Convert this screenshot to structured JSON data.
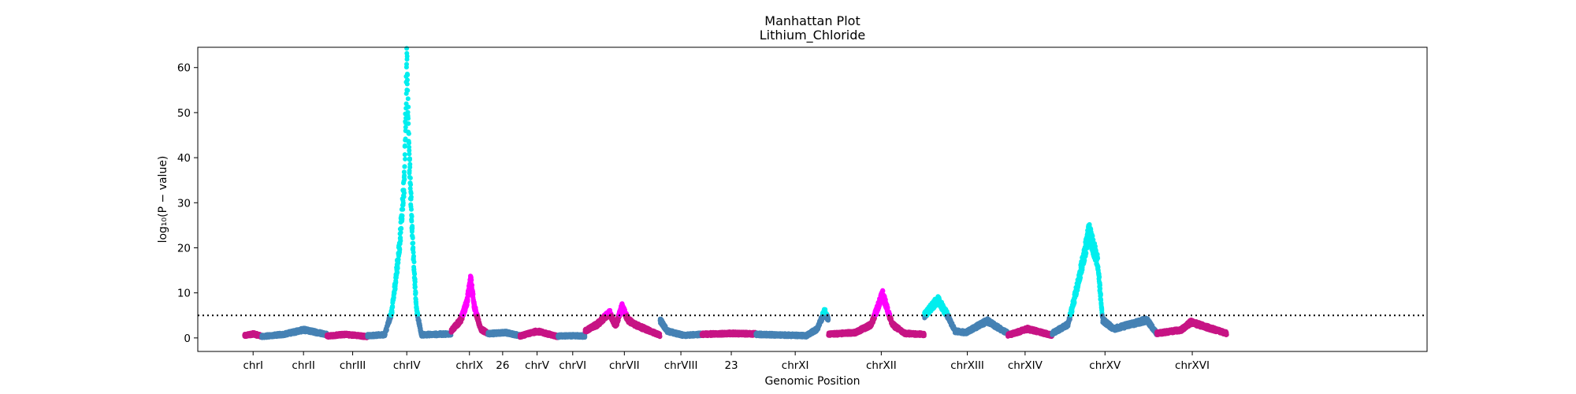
{
  "chart_data": {
    "type": "scatter",
    "title": "Manhattan Plot",
    "subtitle": "Lithium_Chloride",
    "xlabel": "Genomic Position",
    "ylabel": "log₁₀(P − value)",
    "ylim": [
      -3,
      64.5
    ],
    "xlim": [
      0,
      100
    ],
    "yticks": [
      0,
      10,
      20,
      30,
      40,
      50,
      60
    ],
    "threshold": 5.0,
    "grid": false,
    "legend": "none",
    "colors": {
      "chr_a": "#c71585",
      "chr_b": "#4682b4",
      "sig_a": "#ff00ff",
      "sig_b": "#00eeee",
      "threshold": "#000000"
    },
    "xtick_labels": [
      {
        "label": "chrI",
        "x": 4.5
      },
      {
        "label": "chrII",
        "x": 8.6
      },
      {
        "label": "chrIII",
        "x": 12.6
      },
      {
        "label": "chrIV",
        "x": 17.0
      },
      {
        "label": "chrIX",
        "x": 22.1
      },
      {
        "label": "26",
        "x": 24.8
      },
      {
        "label": "chrV",
        "x": 27.6
      },
      {
        "label": "chrVI",
        "x": 30.5
      },
      {
        "label": "chrVII",
        "x": 34.7
      },
      {
        "label": "chrVIII",
        "x": 39.3
      },
      {
        "label": "23",
        "x": 43.4
      },
      {
        "label": "chrXI",
        "x": 48.6
      },
      {
        "label": "chrXII",
        "x": 55.6
      },
      {
        "label": "chrXIII",
        "x": 62.6
      },
      {
        "label": "chrXIV",
        "x": 67.3
      },
      {
        "label": "chrXV",
        "x": 73.8
      },
      {
        "label": "chrXVI",
        "x": 80.9
      }
    ],
    "series": [
      {
        "chrom": "chrI",
        "color": "chr_a",
        "start": 3.8,
        "end": 5.2,
        "profile": [
          [
            3.8,
            0.5
          ],
          [
            4.5,
            0.9
          ],
          [
            5.2,
            0.4
          ]
        ]
      },
      {
        "chrom": "chrII",
        "color": "chr_b",
        "start": 5.2,
        "end": 10.5,
        "profile": [
          [
            5.2,
            0.3
          ],
          [
            7.0,
            0.8
          ],
          [
            8.6,
            1.8
          ],
          [
            10.5,
            0.8
          ]
        ]
      },
      {
        "chrom": "chrIII",
        "color": "chr_a",
        "start": 10.5,
        "end": 13.8,
        "profile": [
          [
            10.5,
            0.4
          ],
          [
            12.0,
            0.8
          ],
          [
            13.8,
            0.3
          ]
        ]
      },
      {
        "chrom": "chrIV",
        "color": "chr_b",
        "start": 13.8,
        "end": 20.6,
        "profile": [
          [
            13.8,
            0.5
          ],
          [
            15.2,
            0.7
          ],
          [
            15.8,
            6
          ],
          [
            16.4,
            20
          ],
          [
            16.8,
            35
          ],
          [
            17.0,
            61
          ],
          [
            17.2,
            40
          ],
          [
            17.5,
            20
          ],
          [
            17.8,
            6
          ],
          [
            18.2,
            0.7
          ],
          [
            20.6,
            0.9
          ]
        ]
      },
      {
        "chrom": "chrIX",
        "color": "chr_a",
        "start": 20.6,
        "end": 23.6,
        "profile": [
          [
            20.6,
            1.5
          ],
          [
            21.4,
            4
          ],
          [
            21.9,
            8
          ],
          [
            22.2,
            13
          ],
          [
            22.5,
            7
          ],
          [
            23.0,
            2
          ],
          [
            23.6,
            1.0
          ]
        ]
      },
      {
        "chrom": "26",
        "color": "chr_b",
        "start": 23.6,
        "end": 26.2,
        "profile": [
          [
            23.6,
            0.9
          ],
          [
            25.0,
            1.2
          ],
          [
            26.2,
            0.5
          ]
        ]
      },
      {
        "chrom": "chrV",
        "color": "chr_a",
        "start": 26.2,
        "end": 29.3,
        "profile": [
          [
            26.2,
            0.4
          ],
          [
            27.6,
            1.5
          ],
          [
            29.3,
            0.3
          ]
        ]
      },
      {
        "chrom": "chrVI",
        "color": "chr_b",
        "start": 29.3,
        "end": 31.5,
        "profile": [
          [
            29.3,
            0.4
          ],
          [
            30.5,
            0.5
          ],
          [
            31.5,
            0.4
          ]
        ]
      },
      {
        "chrom": "chrVII",
        "color": "chr_a",
        "start": 31.5,
        "end": 37.6,
        "profile": [
          [
            31.5,
            1.5
          ],
          [
            32.5,
            3
          ],
          [
            33.5,
            5.6
          ],
          [
            34.0,
            2.5
          ],
          [
            34.5,
            7
          ],
          [
            35.0,
            4
          ],
          [
            35.7,
            2.8
          ],
          [
            37.6,
            0.6
          ]
        ]
      },
      {
        "chrom": "chrVIII",
        "color": "chr_b",
        "start": 37.6,
        "end": 41.0,
        "profile": [
          [
            37.6,
            4
          ],
          [
            38.2,
            1.5
          ],
          [
            39.5,
            0.6
          ],
          [
            41.0,
            0.8
          ]
        ]
      },
      {
        "chrom": "23",
        "color": "chr_a",
        "start": 41.0,
        "end": 45.4,
        "profile": [
          [
            41.0,
            0.8
          ],
          [
            43.4,
            1.0
          ],
          [
            45.4,
            0.9
          ]
        ]
      },
      {
        "chrom": "chrXI",
        "color": "chr_b",
        "start": 45.4,
        "end": 51.3,
        "profile": [
          [
            45.4,
            0.8
          ],
          [
            49.5,
            0.5
          ],
          [
            50.4,
            2
          ],
          [
            51.0,
            6
          ],
          [
            51.3,
            4
          ]
        ]
      },
      {
        "chrom": "chrXII",
        "color": "chr_a",
        "start": 51.3,
        "end": 59.1,
        "profile": [
          [
            51.3,
            0.8
          ],
          [
            53.5,
            1.2
          ],
          [
            54.8,
            3
          ],
          [
            55.7,
            9.7
          ],
          [
            56.5,
            3
          ],
          [
            57.5,
            1.0
          ],
          [
            59.1,
            0.8
          ]
        ]
      },
      {
        "chrom": "chrXIII",
        "color": "chr_b",
        "start": 59.1,
        "end": 65.9,
        "profile": [
          [
            59.1,
            5
          ],
          [
            60.2,
            8.5
          ],
          [
            61.0,
            5
          ],
          [
            61.6,
            1.5
          ],
          [
            62.5,
            1.2
          ],
          [
            64.2,
            3.8
          ],
          [
            65.9,
            1.0
          ]
        ]
      },
      {
        "chrom": "chrXIV",
        "color": "chr_a",
        "start": 65.9,
        "end": 69.5,
        "profile": [
          [
            65.9,
            0.6
          ],
          [
            67.5,
            2
          ],
          [
            69.5,
            0.6
          ]
        ]
      },
      {
        "chrom": "chrXV",
        "color": "chr_b",
        "start": 69.5,
        "end": 78.0,
        "profile": [
          [
            69.5,
            1
          ],
          [
            70.8,
            3
          ],
          [
            71.6,
            12
          ],
          [
            72.5,
            23.5
          ],
          [
            73.2,
            17
          ],
          [
            73.6,
            4
          ],
          [
            74.5,
            2
          ],
          [
            77.2,
            4
          ],
          [
            78.0,
            1.0
          ]
        ]
      },
      {
        "chrom": "chrXVI",
        "color": "chr_a",
        "start": 78.0,
        "end": 83.7,
        "profile": [
          [
            78.0,
            1.0
          ],
          [
            80.0,
            1.8
          ],
          [
            80.8,
            3.5
          ],
          [
            83.7,
            1.0
          ]
        ]
      }
    ]
  }
}
